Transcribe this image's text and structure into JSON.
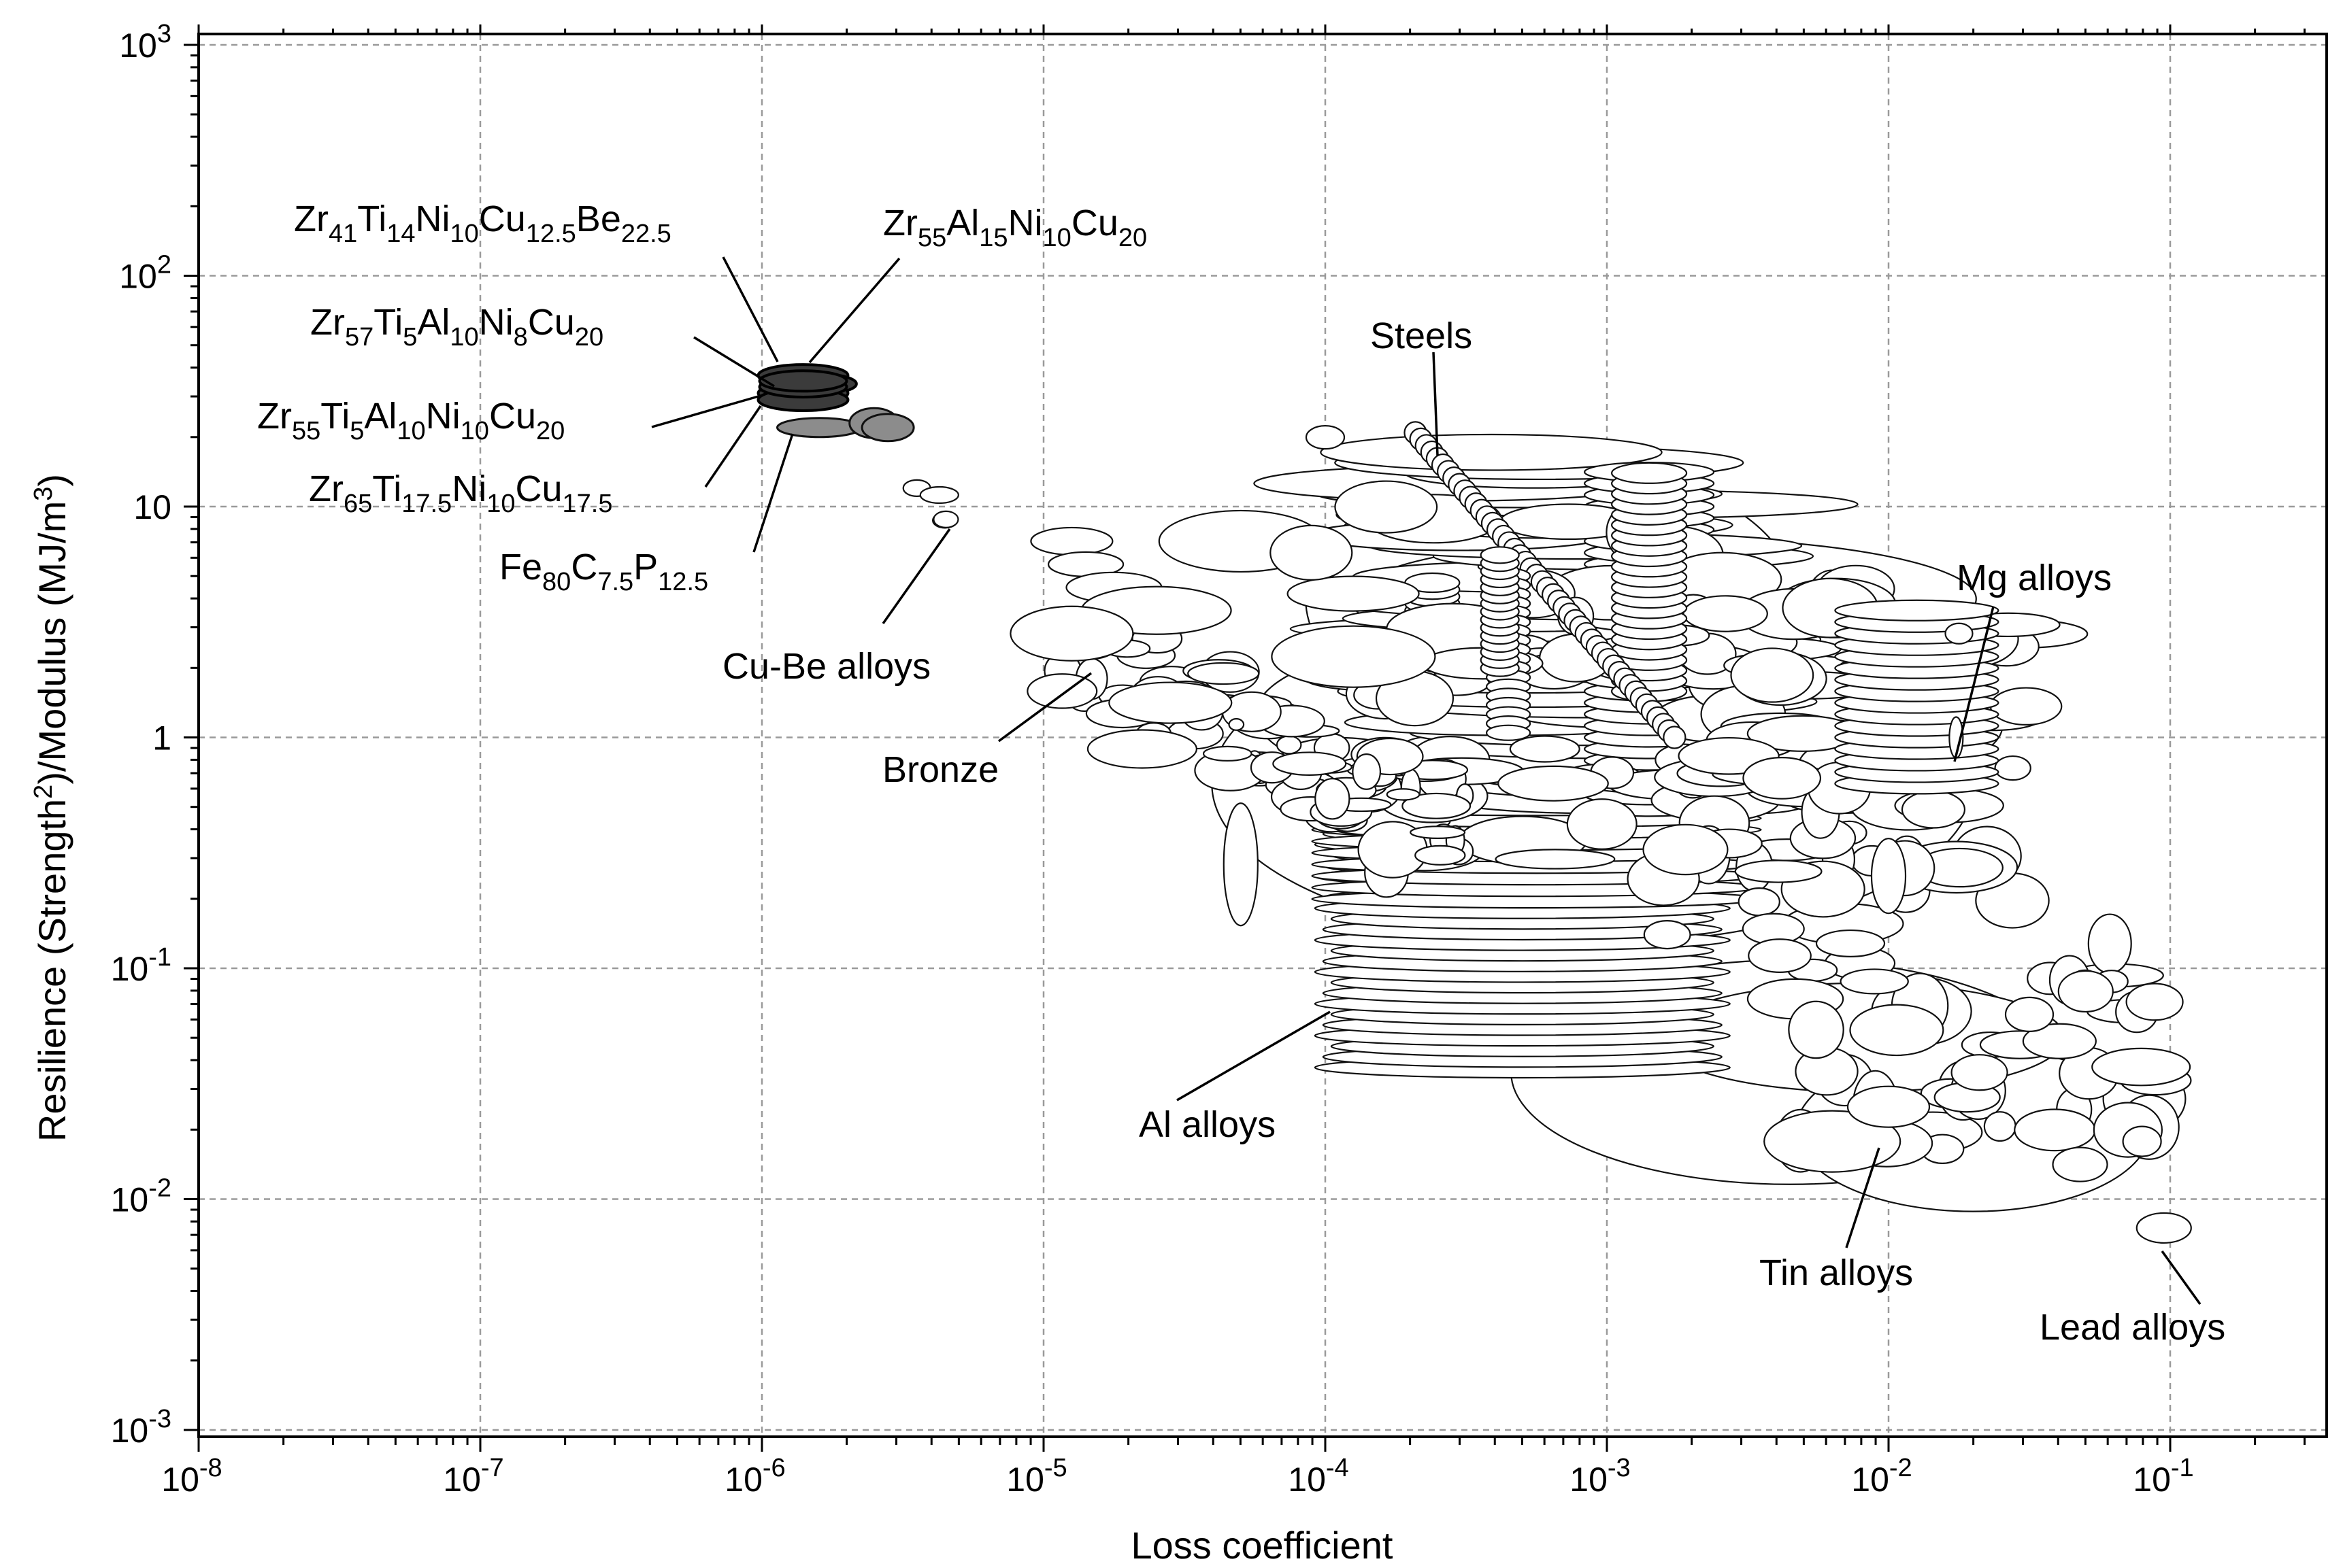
{
  "chart_data": {
    "type": "scatter",
    "title": "",
    "xlabel": "Loss coefficient",
    "ylabel": "Resilience  (Strength",
    "ylabel_sup": "2",
    "ylabel_rest": ")/Modulus (MJ/m",
    "ylabel_sup2": "3",
    "ylabel_end": ")",
    "xscale": "log",
    "yscale": "log",
    "xlim": [
      1e-08,
      0.3
    ],
    "ylim": [
      0.001,
      1000
    ],
    "grid": true,
    "x_ticks": [
      {
        "value": 1e-08,
        "base": "10",
        "exp": "-8"
      },
      {
        "value": 1e-07,
        "base": "10",
        "exp": "-7"
      },
      {
        "value": 1e-06,
        "base": "10",
        "exp": "-6"
      },
      {
        "value": 1e-05,
        "base": "10",
        "exp": "-5"
      },
      {
        "value": 0.0001,
        "base": "10",
        "exp": "-4"
      },
      {
        "value": 0.001,
        "base": "10",
        "exp": "-3"
      },
      {
        "value": 0.01,
        "base": "10",
        "exp": "-2"
      },
      {
        "value": 0.1,
        "base": "10",
        "exp": "-1"
      }
    ],
    "y_ticks": [
      {
        "value": 0.001,
        "base": "10",
        "exp": "-3"
      },
      {
        "value": 0.01,
        "base": "10",
        "exp": "-2"
      },
      {
        "value": 0.1,
        "base": "10",
        "exp": "-1"
      },
      {
        "value": 1,
        "base": "1",
        "exp": ""
      },
      {
        "value": 10,
        "base": "10",
        "exp": ""
      },
      {
        "value": 100,
        "base": "10",
        "exp": "2"
      },
      {
        "value": 1000,
        "base": "10",
        "exp": "3"
      }
    ],
    "groups": [
      {
        "name": "Al alloys",
        "xmin": 0.0001,
        "xmax": 0.002,
        "ymin": 0.035,
        "ymax": 0.7
      },
      {
        "name": "Steels",
        "xmin": 0.0001,
        "xmax": 0.002,
        "ymin": 0.2,
        "ymax": 20
      },
      {
        "name": "Bronze",
        "xmin": 1e-05,
        "xmax": 0.0001,
        "ymin": 0.2,
        "ymax": 3
      },
      {
        "name": "Mg alloys",
        "xmin": 0.0003,
        "xmax": 0.03,
        "ymin": 0.3,
        "ymax": 8
      },
      {
        "name": "Tin alloys",
        "xmin": 0.003,
        "xmax": 0.03,
        "ymin": 0.012,
        "ymax": 0.3
      },
      {
        "name": "Lead alloys",
        "x": 0.095,
        "y": 0.0075
      },
      {
        "name": "Cu-Be alloys",
        "x": 4.5e-06,
        "y": 8.8
      },
      {
        "name": "Zr41Ti14Ni10Cu12.5Be22.5",
        "x": 1.4e-06,
        "y": 37
      },
      {
        "name": "Zr55Al15Ni10Cu20",
        "x": 1.5e-06,
        "y": 34
      },
      {
        "name": "Zr57Ti5Al10Ni8Cu20",
        "x": 1.4e-06,
        "y": 31
      },
      {
        "name": "Zr55Ti5Al10Ni10Cu20",
        "x": 1.4e-06,
        "y": 29
      },
      {
        "name": "Zr65Ti17.5Ni10Cu17.5",
        "x": 1.6e-06,
        "y": 22
      },
      {
        "name": "Fe80C7.5P12.5",
        "x": 2.5e-06,
        "y": 23
      }
    ]
  },
  "annotations": {
    "zr41": {
      "p": [
        [
          "Zr",
          ""
        ],
        [
          "41",
          "sub"
        ],
        [
          "Ti",
          ""
        ],
        [
          "14",
          "sub"
        ],
        [
          "Ni",
          ""
        ],
        [
          "10",
          "sub"
        ],
        [
          "Cu",
          ""
        ],
        [
          "12.5",
          "sub"
        ],
        [
          "Be",
          ""
        ],
        [
          "22.5",
          "sub"
        ]
      ]
    },
    "zr55al": {
      "p": [
        [
          "Zr",
          ""
        ],
        [
          "55",
          "sub"
        ],
        [
          "Al",
          ""
        ],
        [
          "15",
          "sub"
        ],
        [
          "Ni",
          ""
        ],
        [
          "10",
          "sub"
        ],
        [
          "Cu",
          ""
        ],
        [
          "20",
          "sub"
        ]
      ]
    },
    "zr57": {
      "p": [
        [
          "Zr",
          ""
        ],
        [
          "57",
          "sub"
        ],
        [
          "Ti",
          ""
        ],
        [
          "5",
          "sub"
        ],
        [
          "Al",
          ""
        ],
        [
          "10",
          "sub"
        ],
        [
          "Ni",
          ""
        ],
        [
          "8",
          "sub"
        ],
        [
          "Cu",
          ""
        ],
        [
          "20",
          "sub"
        ]
      ]
    },
    "zr55ti": {
      "p": [
        [
          "Zr",
          ""
        ],
        [
          "55",
          "sub"
        ],
        [
          "Ti",
          ""
        ],
        [
          "5",
          "sub"
        ],
        [
          "Al",
          ""
        ],
        [
          "10",
          "sub"
        ],
        [
          "Ni",
          ""
        ],
        [
          "10",
          "sub"
        ],
        [
          "Cu",
          ""
        ],
        [
          "20",
          "sub"
        ]
      ]
    },
    "zr65": {
      "p": [
        [
          "Zr",
          ""
        ],
        [
          "65",
          "sub"
        ],
        [
          "Ti",
          ""
        ],
        [
          "17.5",
          "sub"
        ],
        [
          "Ni",
          ""
        ],
        [
          "10",
          "sub"
        ],
        [
          "Cu",
          ""
        ],
        [
          "17.5",
          "sub"
        ]
      ]
    },
    "fe80": {
      "p": [
        [
          "Fe",
          ""
        ],
        [
          "80",
          "sub"
        ],
        [
          "C",
          ""
        ],
        [
          "7.5",
          "sub"
        ],
        [
          "P",
          ""
        ],
        [
          "12.5",
          "sub"
        ]
      ]
    },
    "cube": "Cu-Be alloys",
    "bronze": "Bronze",
    "steels": "Steels",
    "al": "Al alloys",
    "mg": "Mg alloys",
    "tin": "Tin alloys",
    "lead": "Lead alloys"
  }
}
